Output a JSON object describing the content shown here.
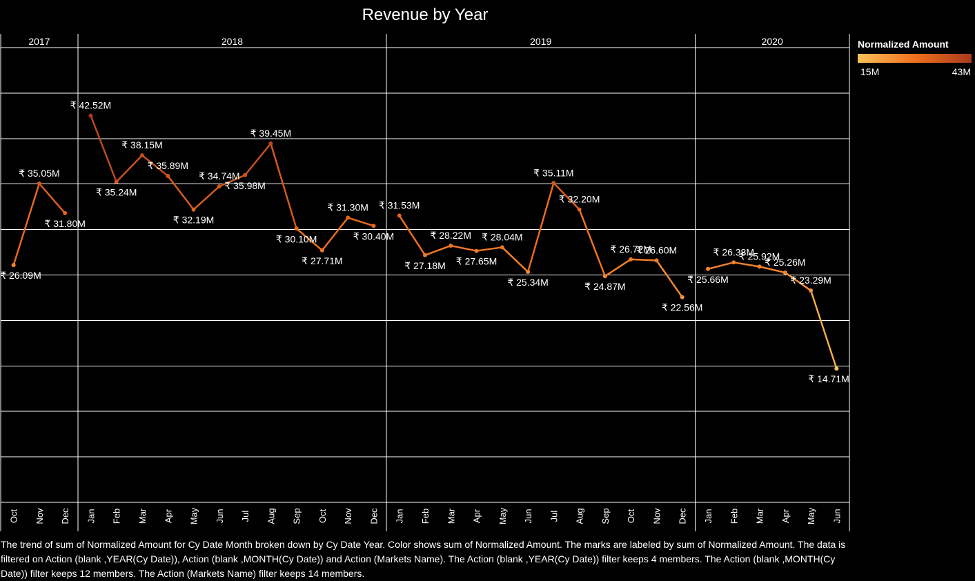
{
  "chart_data": {
    "type": "line",
    "title": "Revenue by Year",
    "colors": {
      "low": "#F9C25A",
      "mid": "#F0701E",
      "high": "#A93A1C"
    },
    "years": [
      "2017",
      "2018",
      "2019",
      "2020"
    ],
    "currency": "₹",
    "unit": "M",
    "ylim": [
      0,
      50
    ],
    "series": [
      {
        "year": "2017",
        "months": [
          "Oct",
          "Nov",
          "Dec"
        ],
        "values": [
          26.09,
          35.05,
          31.8
        ]
      },
      {
        "year": "2018",
        "months": [
          "Jan",
          "Feb",
          "Mar",
          "Apr",
          "May",
          "Jun",
          "Jul",
          "Aug",
          "Sep",
          "Oct",
          "Nov",
          "Dec"
        ],
        "values": [
          42.52,
          35.24,
          38.15,
          35.89,
          32.19,
          34.74,
          35.98,
          39.45,
          30.1,
          27.71,
          31.3,
          30.4
        ]
      },
      {
        "year": "2019",
        "months": [
          "Jan",
          "Feb",
          "Mar",
          "Apr",
          "May",
          "Jun",
          "Jul",
          "Aug",
          "Sep",
          "Oct",
          "Nov",
          "Dec"
        ],
        "values": [
          31.53,
          27.18,
          28.22,
          27.65,
          28.04,
          25.34,
          35.11,
          32.2,
          24.87,
          26.72,
          26.6,
          22.56
        ]
      },
      {
        "year": "2020",
        "months": [
          "Jan",
          "Feb",
          "Mar",
          "Apr",
          "May",
          "Jun"
        ],
        "values": [
          25.66,
          26.38,
          25.92,
          25.26,
          23.29,
          14.71
        ]
      }
    ],
    "legend": {
      "title": "Normalized Amount",
      "min_label": "15M",
      "max_label": "43M",
      "min": 15,
      "max": 43
    }
  },
  "caption": "The trend of sum of Normalized Amount for Cy Date Month broken down by Cy Date Year.  Color shows sum of Normalized Amount.  The marks are labeled by sum of Normalized Amount. The data is filtered on Action (blank ,YEAR(Cy Date)), Action (blank ,MONTH(Cy Date)) and Action (Markets Name). The Action (blank ,YEAR(Cy Date)) filter keeps 4 members. The Action (blank ,MONTH(Cy Date)) filter keeps 12 members. The Action (Markets Name) filter keeps 14 members."
}
